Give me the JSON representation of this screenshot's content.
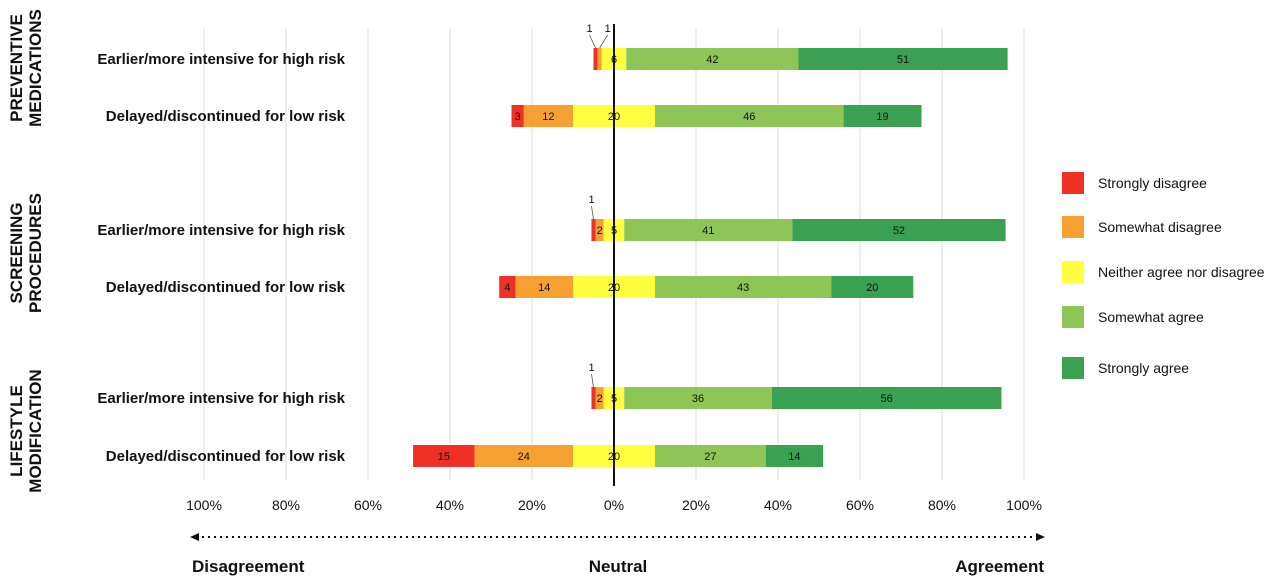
{
  "chart_data": {
    "type": "bar",
    "subtype": "diverging-stacked",
    "title": "",
    "xlim": [
      -100,
      100
    ],
    "x_ticks": [
      -100,
      -80,
      -60,
      -40,
      -20,
      0,
      20,
      40,
      60,
      80,
      100
    ],
    "x_tick_labels": [
      "100%",
      "80%",
      "60%",
      "40%",
      "20%",
      "0%",
      "20%",
      "40%",
      "60%",
      "80%",
      "100%"
    ],
    "grid": true,
    "legend_position": "right",
    "direction_labels": {
      "left": "Disagreement",
      "center": "Neutral",
      "right": "Agreement"
    },
    "series": [
      {
        "name": "Strongly disagree",
        "color": "#ee3124"
      },
      {
        "name": "Somewhat disagree",
        "color": "#f5a031"
      },
      {
        "name": "Neither agree nor disagree",
        "color": "#ffff40"
      },
      {
        "name": "Somewhat agree",
        "color": "#8dc556"
      },
      {
        "name": "Strongly agree",
        "color": "#3aa152"
      }
    ],
    "groups": [
      {
        "label_lines": [
          "PREVENTIVE",
          "MEDICATIONS"
        ],
        "rows": [
          {
            "label": "Earlier/more intensive for high risk",
            "values": [
              1,
              1,
              6,
              42,
              51
            ],
            "callouts": [
              0,
              1
            ]
          },
          {
            "label": "Delayed/discontinued for low risk",
            "values": [
              3,
              12,
              20,
              46,
              19
            ],
            "callouts": []
          }
        ]
      },
      {
        "label_lines": [
          "SCREENING",
          "PROCEDURES"
        ],
        "rows": [
          {
            "label": "Earlier/more intensive for high risk",
            "values": [
              1,
              2,
              5,
              41,
              52
            ],
            "callouts": [
              0
            ]
          },
          {
            "label": "Delayed/discontinued for low risk",
            "values": [
              4,
              14,
              20,
              43,
              20
            ],
            "callouts": []
          }
        ]
      },
      {
        "label_lines": [
          "LIFESTYLE",
          "MODIFICATION"
        ],
        "rows": [
          {
            "label": "Earlier/more intensive for high risk",
            "values": [
              1,
              2,
              5,
              36,
              56
            ],
            "callouts": [
              0
            ]
          },
          {
            "label": "Delayed/discontinued for low risk",
            "values": [
              15,
              24,
              20,
              27,
              14
            ],
            "callouts": []
          }
        ]
      }
    ]
  }
}
